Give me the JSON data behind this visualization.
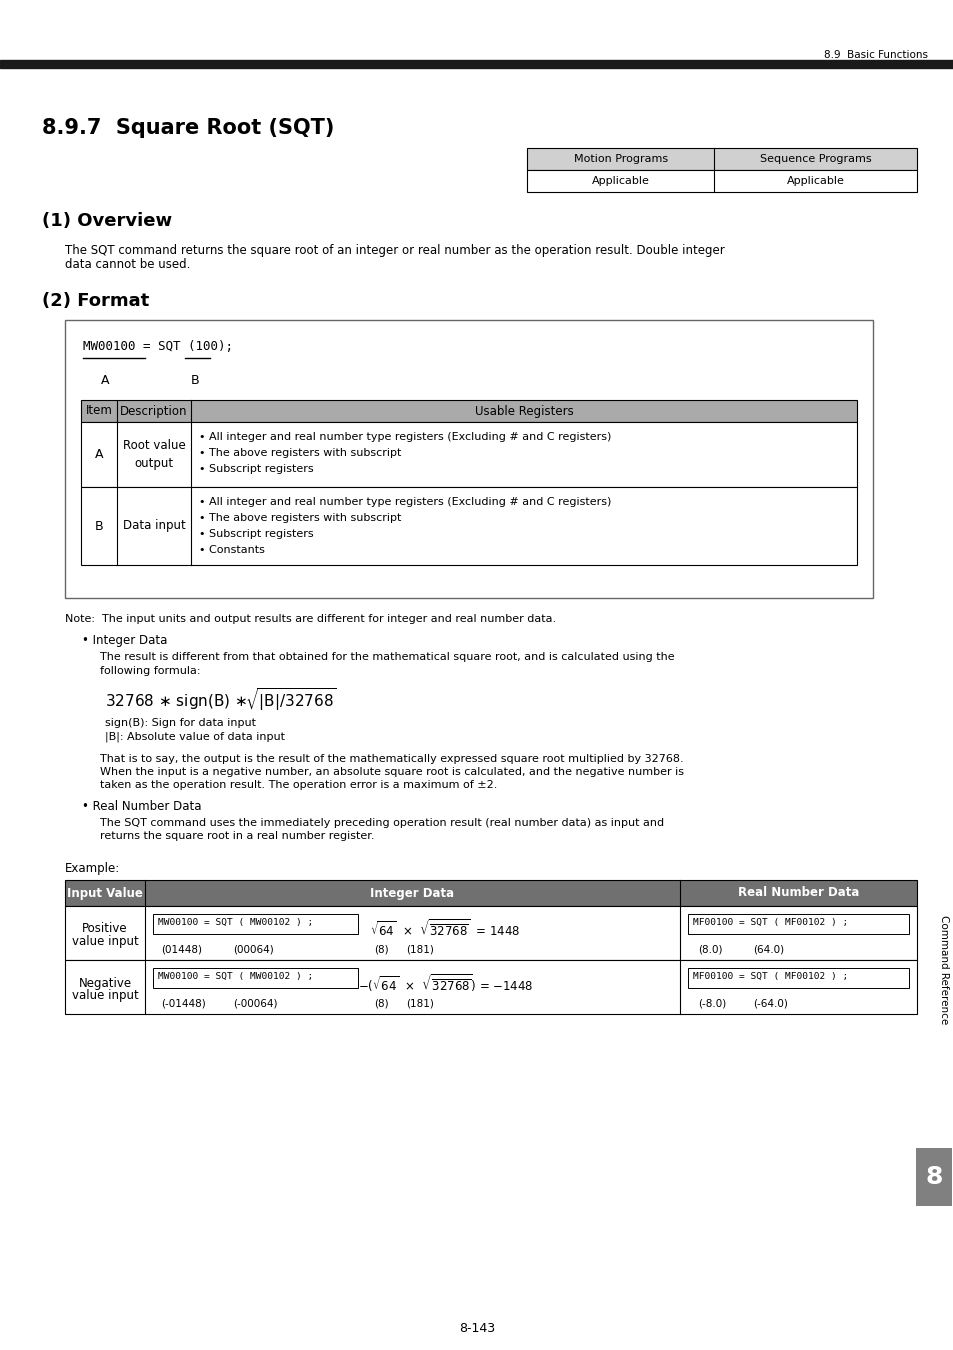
{
  "page_header_right": "8.9  Basic Functions",
  "section_title": "8.9.7  Square Root (SQT)",
  "subsection1_title": "(1) Overview",
  "overview_text1": "The SQT command returns the square root of an integer or real number as the operation result. Double integer",
  "overview_text2": "data cannot be used.",
  "subsection2_title": "(2) Format",
  "motion_programs_label": "Motion Programs",
  "sequence_programs_label": "Sequence Programs",
  "applicable_label": "Applicable",
  "format_code": "MW00100 = SQT (100);",
  "format_A_label": "A",
  "format_B_label": "B",
  "table_header": [
    "Item",
    "Description",
    "Usable Registers"
  ],
  "table_row_A_item": "A",
  "table_row_A_desc": "Root value\noutput",
  "table_row_A_reg1": "• All integer and real number type registers (Excluding # and C registers)",
  "table_row_A_reg2": "• The above registers with subscript",
  "table_row_A_reg3": "• Subscript registers",
  "table_row_B_item": "B",
  "table_row_B_desc": "Data input",
  "table_row_B_reg1": "• All integer and real number type registers (Excluding # and C registers)",
  "table_row_B_reg2": "• The above registers with subscript",
  "table_row_B_reg3": "• Subscript registers",
  "table_row_B_reg4": "• Constants",
  "note_text": "Note:  The input units and output results are different for integer and real number data.",
  "bullet_integer": "• Integer Data",
  "integer_desc1a": "The result is different from that obtained for the mathematical square root, and is calculated using the",
  "integer_desc1b": "following formula:",
  "integer_desc2a": "sign(B): Sign for data input",
  "integer_desc2b": "|B|: Absolute value of data input",
  "integer_desc3a": "That is to say, the output is the result of the mathematically expressed square root multiplied by 32768.",
  "integer_desc3b": "When the input is a negative number, an absolute square root is calculated, and the negative number is",
  "integer_desc3c": "taken as the operation result. The operation error is a maximum of ±2.",
  "bullet_real": "• Real Number Data",
  "real_desc1": "The SQT command uses the immediately preceding operation result (real number data) as input and",
  "real_desc2": "returns the square root in a real number register.",
  "example_label": "Example:",
  "col_header_input": "Input Value",
  "col_header_integer": "Integer Data",
  "col_header_real": "Real Number Data",
  "row1_label1": "Positive",
  "row1_label2": "value input",
  "row1_int_code": "MW00100 = SQT ( MW00102 ) ;",
  "row1_sub1": "(01448)",
  "row1_sub2": "(00064)",
  "row1_sub3": "(8)",
  "row1_sub4": "(181)",
  "row1_real_code": "MF00100 = SQT ( MF00102 ) ;",
  "row1_real_sub1": "(8.0)",
  "row1_real_sub2": "(64.0)",
  "row2_label1": "Negative",
  "row2_label2": "value input",
  "row2_int_code": "MW00100 = SQT ( MW00102 ) ;",
  "row2_sub1": "(-01448)",
  "row2_sub2": "(-00064)",
  "row2_sub3": "(8)",
  "row2_sub4": "(181)",
  "row2_real_code": "MF00100 = SQT ( MF00102 ) ;",
  "row2_real_sub1": "(-8.0)",
  "row2_real_sub2": "(-64.0)",
  "page_footer": "8-143",
  "sidebar_text": "Command Reference",
  "tab_label": "8",
  "bg_color": "#ffffff",
  "header_bar_color": "#1a1a1a",
  "table_header_bg": "#aaaaaa",
  "table_border_color": "#000000",
  "example_header_bg": "#707070",
  "tab_bg": "#808080"
}
